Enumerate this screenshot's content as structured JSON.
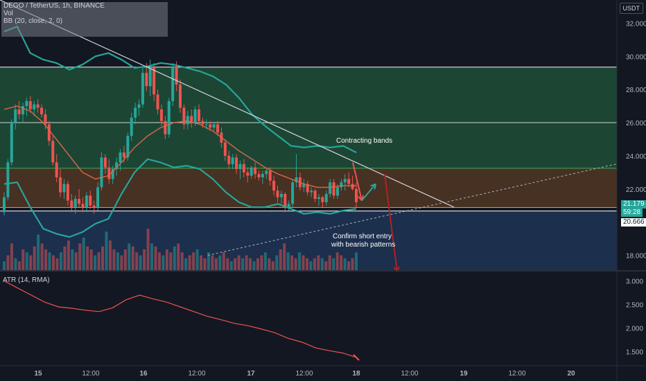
{
  "header": {
    "symbol_line": "DEGO / TetherUS, 1h, BINANCE",
    "vol_label": "Vol",
    "bb_label": "BB (20, close, 2, 0)",
    "currency_button": "USDT"
  },
  "atr_panel": {
    "label": "ATR (14, RMA)"
  },
  "price_tags": {
    "current": "21.179",
    "countdown": "59:28",
    "level": "20.666"
  },
  "annotations": {
    "contracting": "Contracting bands",
    "confirm_line1": "Confirm short entry",
    "confirm_line2": "with bearish patterns"
  },
  "colors": {
    "background": "#131722",
    "up_candle": "#26a69a",
    "down_candle": "#ef5350",
    "bb_band": "#26a69a",
    "bb_basis": "#e06b4a",
    "green_zone": "#1f4a36",
    "orange_zone": "#4c3424",
    "blue_zone": "#1e3252",
    "trendline": "#d1d4dc",
    "atr_line": "#ef5350"
  },
  "chart_data": [
    {
      "type": "candlestick",
      "title": "DEGO / TetherUS, 1h, BINANCE",
      "y_axis_ticks": [
        "32.000",
        "30.000",
        "28.000",
        "26.000",
        "24.000",
        "22.000",
        "18.000"
      ],
      "x_axis_ticks": [
        "15",
        "12:00",
        "16",
        "12:00",
        "17",
        "12:00",
        "18",
        "12:00",
        "19",
        "12:00",
        "20"
      ],
      "ylim": [
        17.1,
        33.4
      ],
      "horizontal_levels": [
        29.35,
        26.0,
        23.25,
        20.88,
        20.666
      ],
      "zones": [
        {
          "name": "green",
          "from": 23.25,
          "to": 29.35
        },
        {
          "name": "orange",
          "from": 20.9,
          "to": 23.25
        },
        {
          "name": "blue",
          "from": 17.1,
          "to": 20.666
        }
      ],
      "candles": [
        [
          20.6,
          21.8,
          20.4,
          21.5
        ],
        [
          21.5,
          23.8,
          21.3,
          23.6
        ],
        [
          23.6,
          26.2,
          23.4,
          26.0
        ],
        [
          26.0,
          27.1,
          25.6,
          26.8
        ],
        [
          26.8,
          27.3,
          26.2,
          26.5
        ],
        [
          26.5,
          27.2,
          26.0,
          27.0
        ],
        [
          27.0,
          27.5,
          26.4,
          27.3
        ],
        [
          27.3,
          27.6,
          26.6,
          26.8
        ],
        [
          26.8,
          27.3,
          26.4,
          27.1
        ],
        [
          27.1,
          27.4,
          26.6,
          26.9
        ],
        [
          26.9,
          27.1,
          26.3,
          26.5
        ],
        [
          26.5,
          26.8,
          25.6,
          25.9
        ],
        [
          25.9,
          26.1,
          24.6,
          24.9
        ],
        [
          24.9,
          25.2,
          23.4,
          23.6
        ],
        [
          23.6,
          24.1,
          22.4,
          22.7
        ],
        [
          22.7,
          23.2,
          21.5,
          21.8
        ],
        [
          21.8,
          22.6,
          21.4,
          22.3
        ],
        [
          22.3,
          22.5,
          21.0,
          21.3
        ],
        [
          21.3,
          21.7,
          20.6,
          20.9
        ],
        [
          20.9,
          21.6,
          20.5,
          21.4
        ],
        [
          21.4,
          22.0,
          20.9,
          21.1
        ],
        [
          21.1,
          21.5,
          20.6,
          20.9
        ],
        [
          20.9,
          21.8,
          20.6,
          21.6
        ],
        [
          21.6,
          21.9,
          20.8,
          21.0
        ],
        [
          21.0,
          21.3,
          20.5,
          20.9
        ],
        [
          20.9,
          22.4,
          20.7,
          22.1
        ],
        [
          22.1,
          24.2,
          21.9,
          23.9
        ],
        [
          23.9,
          24.1,
          22.9,
          23.3
        ],
        [
          23.3,
          23.8,
          22.3,
          22.6
        ],
        [
          22.6,
          23.4,
          22.3,
          23.2
        ],
        [
          23.2,
          23.9,
          22.8,
          23.6
        ],
        [
          23.6,
          24.4,
          23.1,
          24.2
        ],
        [
          24.2,
          24.6,
          23.6,
          23.9
        ],
        [
          23.9,
          25.4,
          23.7,
          25.2
        ],
        [
          25.2,
          26.6,
          24.9,
          26.3
        ],
        [
          26.3,
          27.2,
          25.9,
          26.9
        ],
        [
          26.9,
          27.4,
          26.4,
          27.1
        ],
        [
          27.1,
          29.3,
          26.9,
          29.0
        ],
        [
          29.0,
          29.6,
          27.9,
          28.2
        ],
        [
          28.2,
          29.8,
          27.6,
          29.3
        ],
        [
          29.3,
          29.6,
          27.3,
          27.7
        ],
        [
          27.7,
          28.0,
          26.5,
          26.8
        ],
        [
          26.8,
          27.1,
          25.8,
          26.1
        ],
        [
          26.1,
          26.4,
          25.0,
          25.3
        ],
        [
          25.3,
          27.5,
          25.1,
          27.3
        ],
        [
          27.3,
          29.6,
          27.0,
          29.4
        ],
        [
          29.4,
          29.7,
          27.9,
          28.3
        ],
        [
          28.3,
          28.6,
          26.6,
          26.9
        ],
        [
          26.9,
          27.1,
          25.6,
          25.9
        ],
        [
          25.9,
          26.7,
          25.6,
          26.4
        ],
        [
          26.4,
          26.8,
          25.7,
          26.0
        ],
        [
          26.0,
          27.0,
          25.8,
          26.8
        ],
        [
          26.8,
          27.1,
          25.9,
          26.1
        ],
        [
          26.1,
          26.3,
          25.7,
          25.9
        ],
        [
          25.9,
          26.2,
          25.6,
          25.9
        ],
        [
          25.9,
          26.1,
          25.5,
          25.7
        ],
        [
          25.7,
          26.0,
          25.5,
          25.9
        ],
        [
          25.9,
          26.1,
          25.2,
          25.4
        ],
        [
          25.4,
          25.7,
          24.5,
          24.8
        ],
        [
          24.8,
          25.0,
          23.7,
          24.0
        ],
        [
          24.0,
          24.3,
          23.2,
          23.5
        ],
        [
          23.5,
          24.1,
          23.2,
          23.9
        ],
        [
          23.9,
          24.1,
          22.9,
          23.2
        ],
        [
          23.2,
          23.7,
          22.6,
          23.5
        ],
        [
          23.5,
          23.8,
          22.7,
          23.0
        ],
        [
          23.0,
          23.3,
          22.4,
          22.8
        ],
        [
          22.8,
          23.4,
          22.6,
          23.3
        ],
        [
          23.3,
          23.6,
          22.6,
          22.9
        ],
        [
          22.9,
          23.1,
          22.5,
          22.7
        ],
        [
          22.7,
          23.1,
          22.3,
          22.9
        ],
        [
          22.9,
          23.2,
          22.6,
          23.1
        ],
        [
          23.1,
          23.3,
          22.2,
          22.5
        ],
        [
          22.5,
          22.8,
          21.6,
          21.9
        ],
        [
          21.9,
          22.2,
          21.2,
          21.5
        ],
        [
          21.5,
          21.9,
          21.1,
          21.7
        ],
        [
          21.7,
          21.8,
          20.6,
          20.9
        ],
        [
          20.9,
          21.3,
          20.7,
          21.1
        ],
        [
          21.1,
          22.6,
          20.9,
          22.4
        ],
        [
          22.4,
          24.1,
          22.1,
          22.7
        ],
        [
          22.7,
          23.0,
          21.9,
          22.1
        ],
        [
          22.1,
          22.6,
          21.8,
          22.3
        ],
        [
          22.3,
          22.5,
          21.6,
          21.8
        ],
        [
          21.8,
          22.1,
          21.5,
          21.9
        ],
        [
          21.9,
          22.0,
          21.2,
          21.4
        ],
        [
          21.4,
          21.7,
          21.0,
          21.5
        ],
        [
          21.5,
          21.6,
          20.9,
          21.2
        ],
        [
          21.2,
          21.9,
          21.0,
          21.7
        ],
        [
          21.7,
          22.6,
          21.5,
          22.4
        ],
        [
          22.4,
          22.6,
          21.4,
          21.6
        ],
        [
          21.6,
          22.3,
          21.4,
          22.1
        ],
        [
          22.1,
          22.6,
          21.9,
          22.4
        ],
        [
          22.4,
          22.9,
          21.9,
          22.6
        ],
        [
          22.6,
          23.0,
          22.1,
          22.3
        ],
        [
          22.3,
          22.8,
          21.9,
          22.0
        ],
        [
          22.0,
          22.4,
          20.9,
          21.2
        ]
      ],
      "bollinger": {
        "upper": [
          31.5,
          31.8,
          30.2,
          29.8,
          29.6,
          29.2,
          29.5,
          30.0,
          30.2,
          29.8,
          29.3,
          29.4,
          29.6,
          29.5,
          29.3,
          29.1,
          28.8,
          28.3,
          27.5,
          26.5,
          25.8,
          25.2,
          24.6,
          24.5,
          24.6,
          24.5,
          24.6,
          24.2
        ],
        "basis": [
          26.8,
          27.0,
          26.7,
          26.0,
          25.0,
          24.0,
          23.0,
          22.6,
          22.8,
          23.6,
          24.5,
          25.2,
          25.7,
          26.0,
          26.1,
          25.9,
          25.5,
          24.9,
          24.3,
          23.8,
          23.3,
          22.9,
          22.6,
          22.3,
          22.1,
          22.1,
          22.2,
          22.2
        ],
        "lower": [
          22.3,
          22.4,
          20.9,
          19.6,
          19.3,
          19.1,
          19.4,
          19.9,
          20.2,
          21.7,
          23.0,
          23.8,
          23.6,
          23.3,
          23.4,
          23.2,
          22.6,
          21.8,
          21.2,
          20.9,
          20.9,
          21.1,
          20.8,
          20.5,
          20.6,
          20.5,
          20.7,
          20.8
        ]
      },
      "trendline": [
        [
          0,
          33.4
        ],
        [
          655,
          20.9
        ]
      ],
      "projected_line": [
        [
          300,
          18.0
        ],
        [
          932,
          23.9
        ]
      ],
      "arrows": [
        {
          "from": [
            509,
            23.6
          ],
          "to": [
            522,
            21.3
          ],
          "color": "#ef5350"
        },
        {
          "from": [
            522,
            21.3
          ],
          "to": [
            542,
            22.3
          ],
          "color": "#26a69a"
        },
        {
          "from": [
            555,
            22.9
          ],
          "to": [
            573,
            17.0
          ],
          "color": "#b22222"
        }
      ]
    },
    {
      "type": "bar",
      "title": "Vol",
      "values": [
        3,
        5,
        9,
        4,
        3,
        7,
        6,
        5,
        8,
        12,
        9,
        7,
        6,
        5,
        4,
        6,
        8,
        10,
        7,
        6,
        9,
        11,
        8,
        7,
        5,
        6,
        8,
        13,
        10,
        7,
        6,
        5,
        7,
        9,
        8,
        6,
        5,
        7,
        14,
        9,
        8,
        6,
        5,
        7,
        6,
        8,
        9,
        6,
        4,
        5,
        6,
        7,
        5,
        4,
        6,
        5,
        4,
        5,
        6,
        4,
        3,
        4,
        5,
        4,
        5,
        4,
        3,
        4,
        5,
        6,
        4,
        3,
        5,
        7,
        9,
        6,
        5,
        4,
        6,
        5,
        4,
        3,
        4,
        5,
        4,
        3,
        5,
        4,
        6,
        5,
        4,
        3,
        4,
        6
      ]
    },
    {
      "type": "line",
      "title": "ATR (14, RMA)",
      "y_axis_ticks": [
        "3.000",
        "2.500",
        "2.000",
        "1.500"
      ],
      "ylim": [
        1.2,
        3.2
      ],
      "values": [
        3.0,
        2.85,
        2.7,
        2.55,
        2.45,
        2.42,
        2.38,
        2.35,
        2.43,
        2.6,
        2.7,
        2.62,
        2.55,
        2.45,
        2.35,
        2.25,
        2.18,
        2.1,
        2.05,
        1.98,
        1.9,
        1.78,
        1.7,
        1.58,
        1.52,
        1.47,
        1.38
      ]
    }
  ]
}
